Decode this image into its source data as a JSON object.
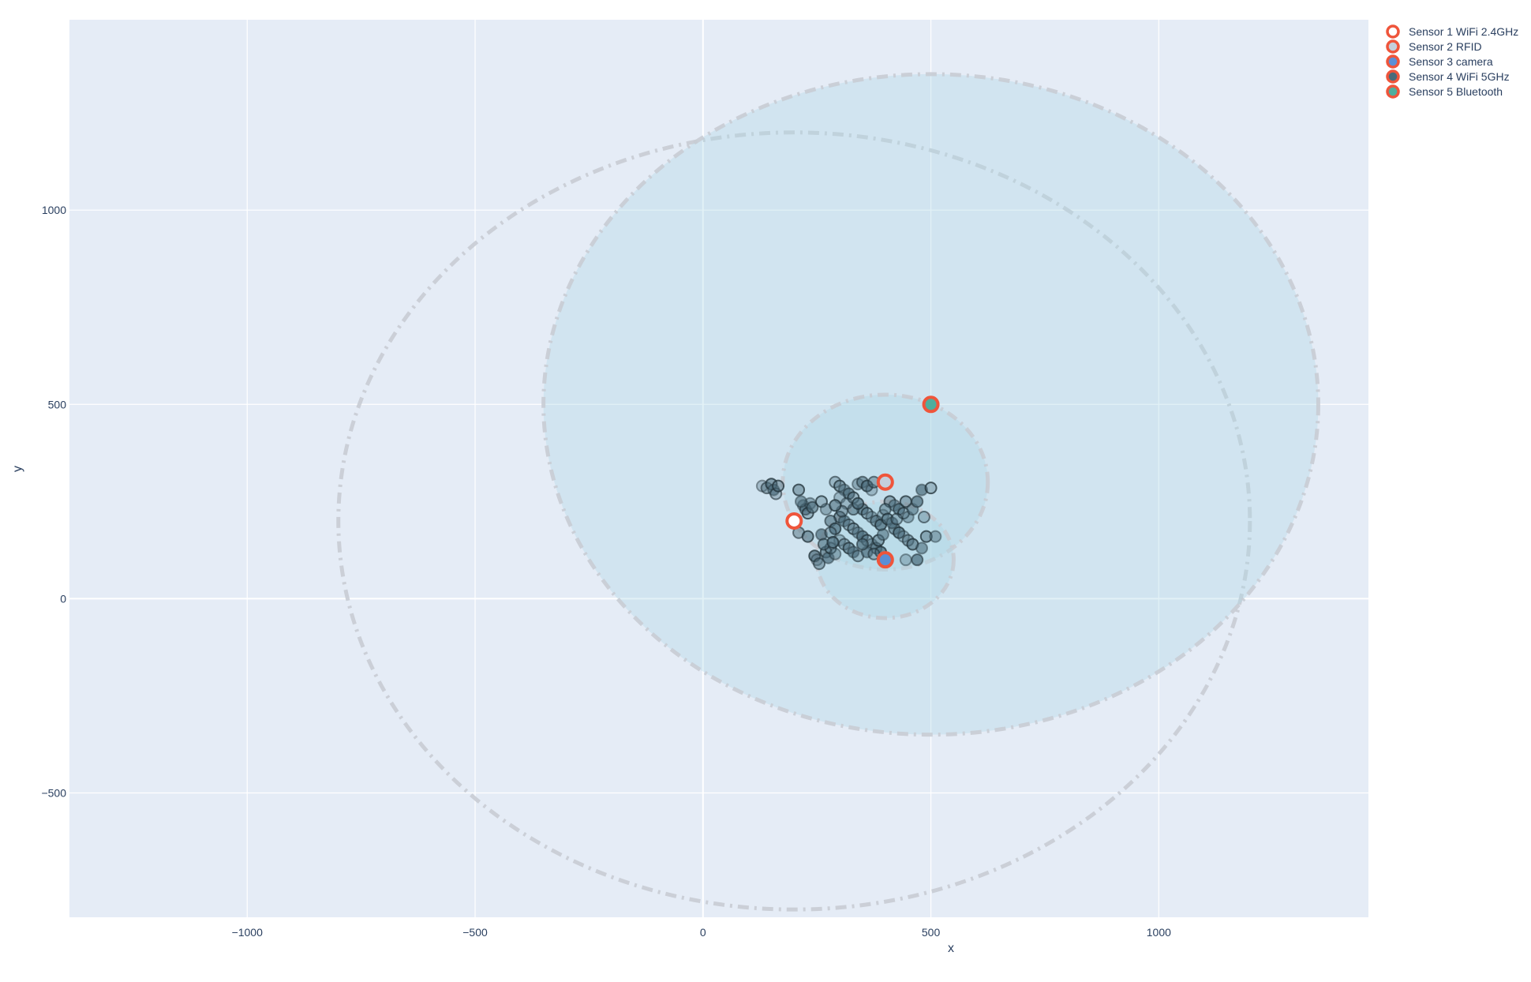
{
  "chart_data": {
    "type": "scatter",
    "title": "",
    "xlabel": "x",
    "ylabel": "y",
    "xlim": [
      -1390,
      1460
    ],
    "ylim": [
      -820,
      1490
    ],
    "x_ticks": [
      -1000,
      -500,
      0,
      500,
      1000
    ],
    "y_ticks": [
      -500,
      0,
      500,
      1000
    ],
    "x_tick_labels": [
      "−1000",
      "−500",
      "0",
      "500",
      "1000"
    ],
    "y_tick_labels": [
      "−500",
      "0",
      "500",
      "1000"
    ],
    "grid": true,
    "legend_position": "top-right",
    "colors": {
      "plot_bg": "#e5ecf6",
      "grid": "#ffffff",
      "marker_outline": "#ef553b",
      "coverage_fill": "#add8e6",
      "coverage_line": "#c8ccd4",
      "point_fill": "#4a6b7a",
      "point_line": "#1f2f35"
    },
    "coverage_areas": [
      {
        "cx": 200,
        "cy": 200,
        "r": 1000,
        "filled": false
      },
      {
        "cx": 500,
        "cy": 500,
        "r": 850,
        "filled": true
      },
      {
        "cx": 400,
        "cy": 300,
        "r": 225,
        "filled": true
      },
      {
        "cx": 400,
        "cy": 100,
        "r": 150,
        "filled": true
      }
    ],
    "series": [
      {
        "name": "Sensor 1 WiFi 2.4GHz",
        "x": [
          200
        ],
        "y": [
          200
        ],
        "fill": "#ffffff",
        "line": "#ef553b"
      },
      {
        "name": "Sensor 2 RFID",
        "x": [
          400
        ],
        "y": [
          300
        ],
        "fill": "#c4cfdc",
        "line": "#ef553b"
      },
      {
        "name": "Sensor 3 camera",
        "x": [
          400
        ],
        "y": [
          100
        ],
        "fill": "#5b8fd6",
        "line": "#ef553b"
      },
      {
        "name": "Sensor 4 WiFi 5GHz",
        "x": [],
        "y": [],
        "fill": "#4a6b7a",
        "line": "#ef553b"
      },
      {
        "name": "Sensor 5 Bluetooth",
        "x": [
          500
        ],
        "y": [
          500
        ],
        "fill": "#4fae9d",
        "line": "#ef553b"
      }
    ],
    "detections": [
      [
        130,
        290
      ],
      [
        140,
        285
      ],
      [
        150,
        295
      ],
      [
        155,
        280
      ],
      [
        160,
        270
      ],
      [
        165,
        290
      ],
      [
        220,
        240
      ],
      [
        225,
        230
      ],
      [
        230,
        220
      ],
      [
        235,
        245
      ],
      [
        240,
        235
      ],
      [
        245,
        110
      ],
      [
        250,
        100
      ],
      [
        255,
        90
      ],
      [
        270,
        120
      ],
      [
        275,
        105
      ],
      [
        290,
        300
      ],
      [
        300,
        290
      ],
      [
        310,
        280
      ],
      [
        320,
        270
      ],
      [
        330,
        260
      ],
      [
        340,
        295
      ],
      [
        350,
        300
      ],
      [
        360,
        290
      ],
      [
        370,
        280
      ],
      [
        375,
        300
      ],
      [
        300,
        210
      ],
      [
        310,
        200
      ],
      [
        320,
        190
      ],
      [
        330,
        180
      ],
      [
        340,
        170
      ],
      [
        350,
        160
      ],
      [
        360,
        150
      ],
      [
        370,
        140
      ],
      [
        380,
        130
      ],
      [
        390,
        120
      ],
      [
        300,
        150
      ],
      [
        310,
        140
      ],
      [
        320,
        130
      ],
      [
        330,
        120
      ],
      [
        340,
        110
      ],
      [
        410,
        250
      ],
      [
        420,
        240
      ],
      [
        430,
        230
      ],
      [
        440,
        220
      ],
      [
        450,
        210
      ],
      [
        420,
        180
      ],
      [
        430,
        170
      ],
      [
        440,
        160
      ],
      [
        450,
        150
      ],
      [
        460,
        140
      ],
      [
        480,
        280
      ],
      [
        485,
        210
      ],
      [
        490,
        160
      ],
      [
        480,
        130
      ],
      [
        470,
        100
      ],
      [
        260,
        250
      ],
      [
        270,
        230
      ],
      [
        280,
        200
      ],
      [
        290,
        180
      ],
      [
        300,
        260
      ],
      [
        210,
        170
      ],
      [
        230,
        160
      ],
      [
        260,
        165
      ],
      [
        280,
        170
      ],
      [
        210,
        280
      ],
      [
        215,
        250
      ],
      [
        350,
        230
      ],
      [
        360,
        220
      ],
      [
        370,
        210
      ],
      [
        380,
        200
      ],
      [
        390,
        190
      ],
      [
        395,
        215
      ],
      [
        400,
        230
      ],
      [
        405,
        205
      ],
      [
        415,
        195
      ],
      [
        425,
        205
      ],
      [
        445,
        250
      ],
      [
        460,
        230
      ],
      [
        470,
        250
      ],
      [
        500,
        285
      ],
      [
        510,
        160
      ],
      [
        330,
        230
      ],
      [
        340,
        245
      ],
      [
        315,
        245
      ],
      [
        305,
        225
      ],
      [
        290,
        240
      ],
      [
        360,
        120
      ],
      [
        375,
        115
      ],
      [
        385,
        150
      ],
      [
        395,
        165
      ],
      [
        350,
        140
      ],
      [
        280,
        130
      ],
      [
        290,
        115
      ],
      [
        265,
        140
      ],
      [
        285,
        145
      ],
      [
        445,
        100
      ]
    ]
  }
}
